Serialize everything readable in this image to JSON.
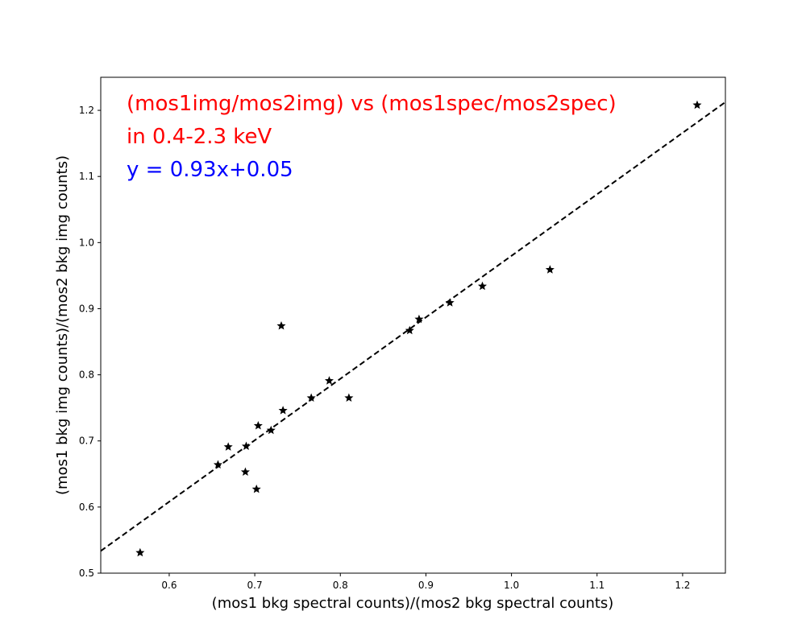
{
  "chart_data": {
    "type": "scatter",
    "title": "",
    "xlabel": "(mos1 bkg spectral counts)/(mos2 bkg spectral counts)",
    "ylabel": "(mos1 bkg img counts)/(mos2 bkg img counts)",
    "xlim": [
      0.52,
      1.25
    ],
    "ylim": [
      0.5,
      1.25
    ],
    "xticks": [
      0.6,
      0.7,
      0.8,
      0.9,
      1.0,
      1.1,
      1.2
    ],
    "xtick_labels": [
      "0.6",
      "0.7",
      "0.8",
      "0.9",
      "1.0",
      "1.1",
      "1.2"
    ],
    "yticks": [
      0.5,
      0.6,
      0.7,
      0.8,
      0.9,
      1.0,
      1.1,
      1.2
    ],
    "ytick_labels": [
      "0.5",
      "0.6",
      "0.7",
      "0.8",
      "0.9",
      "1.0",
      "1.1",
      "1.2"
    ],
    "grid": false,
    "marker_color": "#000000",
    "points": [
      [
        0.566,
        0.531
      ],
      [
        0.657,
        0.664
      ],
      [
        0.669,
        0.691
      ],
      [
        0.689,
        0.653
      ],
      [
        0.69,
        0.692
      ],
      [
        0.702,
        0.627
      ],
      [
        0.704,
        0.723
      ],
      [
        0.719,
        0.716
      ],
      [
        0.731,
        0.874
      ],
      [
        0.733,
        0.746
      ],
      [
        0.766,
        0.765
      ],
      [
        0.787,
        0.791
      ],
      [
        0.81,
        0.765
      ],
      [
        0.881,
        0.867
      ],
      [
        0.892,
        0.884
      ],
      [
        0.928,
        0.909
      ],
      [
        0.966,
        0.934
      ],
      [
        1.045,
        0.959
      ],
      [
        1.217,
        1.208
      ]
    ],
    "fit": {
      "slope": 0.93,
      "intercept": 0.05,
      "style": "dashed",
      "color": "#000000"
    },
    "annotations": [
      {
        "text": "(mos1img/mos2img) vs (mos1spec/mos2spec)",
        "color": "#ff0000"
      },
      {
        "text": "in 0.4-2.3 keV",
        "color": "#ff0000"
      },
      {
        "text": "y = 0.93x+0.05",
        "color": "#0000ff"
      }
    ]
  }
}
